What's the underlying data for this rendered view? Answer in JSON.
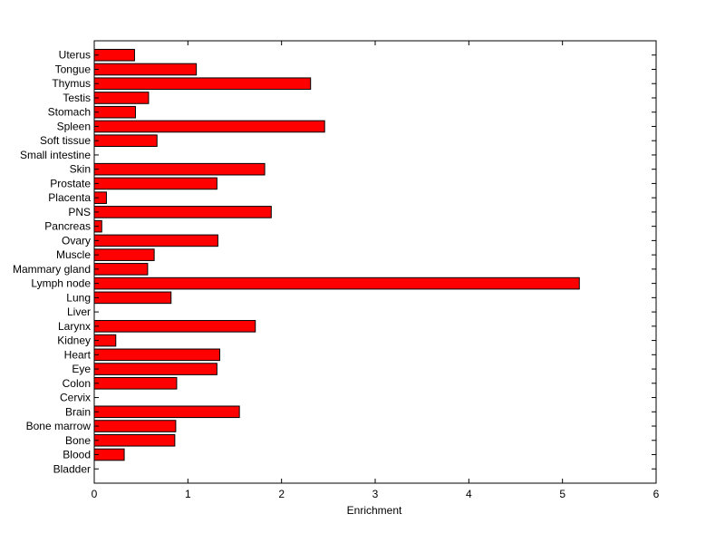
{
  "chart_data": {
    "type": "bar",
    "orientation": "horizontal",
    "title": "",
    "xlabel": "Enrichment",
    "ylabel": "",
    "xlim": [
      0,
      6
    ],
    "xticks": [
      "0",
      "1",
      "2",
      "3",
      "4",
      "5",
      "6"
    ],
    "grid": false,
    "legend": "none",
    "bar_color": "#ff0000",
    "bar_edge_color": "#000000",
    "categories": [
      "Uterus",
      "Tongue",
      "Thymus",
      "Testis",
      "Stomach",
      "Spleen",
      "Soft tissue",
      "Small intestine",
      "Skin",
      "Prostate",
      "Placenta",
      "PNS",
      "Pancreas",
      "Ovary",
      "Muscle",
      "Mammary gland",
      "Lymph node",
      "Lung",
      "Liver",
      "Larynx",
      "Kidney",
      "Heart",
      "Eye",
      "Colon",
      "Cervix",
      "Brain",
      "Bone marrow",
      "Bone",
      "Blood",
      "Bladder"
    ],
    "values": [
      0.43,
      1.09,
      2.31,
      0.58,
      0.44,
      2.46,
      0.67,
      0,
      1.82,
      1.31,
      0.13,
      1.89,
      0.08,
      1.32,
      0.64,
      0.57,
      5.18,
      0.82,
      0,
      1.72,
      0.23,
      1.34,
      1.31,
      0.88,
      0,
      1.55,
      0.87,
      0.86,
      0.32,
      0
    ]
  }
}
